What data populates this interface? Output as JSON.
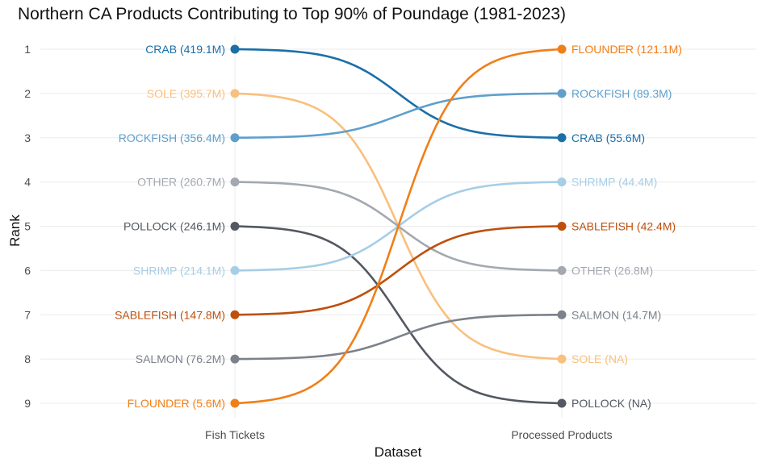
{
  "chart_data": {
    "type": "line",
    "title": "Northern CA Products Contributing to Top 90% of Poundage (1981-2023)",
    "xlabel": "Dataset",
    "ylabel": "Rank",
    "categories": [
      "Fish Tickets",
      "Processed Products"
    ],
    "y_ticks": [
      "1",
      "2",
      "3",
      "4",
      "5",
      "6",
      "7",
      "8",
      "9"
    ],
    "ylim": [
      1,
      9
    ],
    "y_reversed": true,
    "grid": true,
    "series": [
      {
        "name": "CRAB",
        "color": "#1B6FA8",
        "values": [
          1,
          3
        ],
        "labels": [
          "CRAB (419.1M)",
          "CRAB (55.6M)"
        ]
      },
      {
        "name": "SOLE",
        "color": "#F9C07E",
        "values": [
          2,
          8
        ],
        "labels": [
          "SOLE (395.7M)",
          "SOLE (NA)"
        ]
      },
      {
        "name": "ROCKFISH",
        "color": "#5E9FCB",
        "values": [
          3,
          2
        ],
        "labels": [
          "ROCKFISH (356.4M)",
          "ROCKFISH (89.3M)"
        ]
      },
      {
        "name": "OTHER",
        "color": "#A3A8B1",
        "values": [
          4,
          6
        ],
        "labels": [
          "OTHER (260.7M)",
          "OTHER (26.8M)"
        ]
      },
      {
        "name": "POLLOCK",
        "color": "#535862",
        "values": [
          5,
          9
        ],
        "labels": [
          "POLLOCK (246.1M)",
          "POLLOCK (NA)"
        ]
      },
      {
        "name": "SHRIMP",
        "color": "#A6CEE6",
        "values": [
          6,
          4
        ],
        "labels": [
          "SHRIMP (214.1M)",
          "SHRIMP (44.4M)"
        ]
      },
      {
        "name": "SABLEFISH",
        "color": "#BE4F0C",
        "values": [
          7,
          5
        ],
        "labels": [
          "SABLEFISH (147.8M)",
          "SABLEFISH (42.4M)"
        ]
      },
      {
        "name": "SALMON",
        "color": "#7C818A",
        "values": [
          8,
          7
        ],
        "labels": [
          "SALMON (76.2M)",
          "SALMON (14.7M)"
        ]
      },
      {
        "name": "FLOUNDER",
        "color": "#F07F18",
        "values": [
          9,
          1
        ],
        "labels": [
          "FLOUNDER (5.6M)",
          "FLOUNDER (121.1M)"
        ]
      }
    ]
  }
}
